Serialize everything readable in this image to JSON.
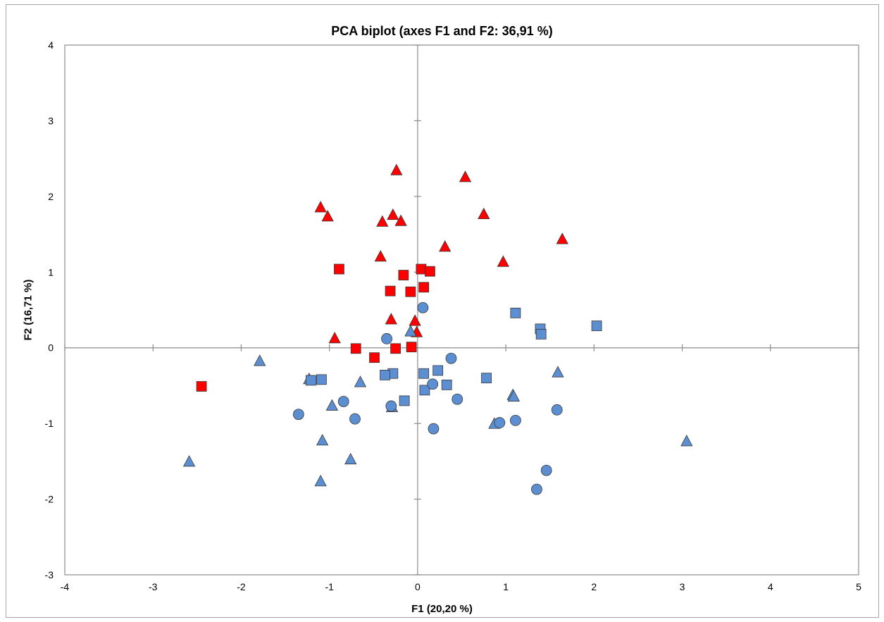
{
  "chart_data": {
    "type": "scatter",
    "title": "PCA biplot (axes F1 and F2: 36,91 %)",
    "xlabel": "F1 (20,20 %)",
    "ylabel": "F2 (16,71 %)",
    "xlim": [
      -4,
      5
    ],
    "ylim": [
      -3,
      4
    ],
    "xticks": [
      "-4",
      "-3",
      "-2",
      "-1",
      "0",
      "1",
      "2",
      "3",
      "4",
      "5"
    ],
    "yticks": [
      "-3",
      "-2",
      "-1",
      "0",
      "1",
      "2",
      "3",
      "4"
    ],
    "grid": false,
    "colors": {
      "red": "#ff0000",
      "blue": "#5b8fd1",
      "edge": "#3a3a3a",
      "axis": "#8c8c8c"
    },
    "series": [
      {
        "marker": "triangle",
        "color": "red",
        "points": [
          [
            -0.24,
            2.34
          ],
          [
            0.54,
            2.25
          ],
          [
            -1.1,
            1.85
          ],
          [
            -1.02,
            1.73
          ],
          [
            -0.28,
            1.75
          ],
          [
            -0.4,
            1.66
          ],
          [
            -0.19,
            1.67
          ],
          [
            0.75,
            1.76
          ],
          [
            1.64,
            1.43
          ],
          [
            0.31,
            1.33
          ],
          [
            -0.42,
            1.2
          ],
          [
            0.97,
            1.13
          ],
          [
            -0.3,
            0.37
          ],
          [
            -0.03,
            0.35
          ],
          [
            -0.01,
            0.2
          ],
          [
            -0.94,
            0.12
          ]
        ]
      },
      {
        "marker": "square",
        "color": "red",
        "points": [
          [
            -0.89,
            1.04
          ],
          [
            0.04,
            1.04
          ],
          [
            0.14,
            1.01
          ],
          [
            -0.16,
            0.96
          ],
          [
            -0.31,
            0.75
          ],
          [
            -0.08,
            0.74
          ],
          [
            0.07,
            0.8
          ],
          [
            -0.7,
            -0.01
          ],
          [
            -0.25,
            -0.01
          ],
          [
            -0.07,
            0.01
          ],
          [
            -0.49,
            -0.13
          ],
          [
            -2.45,
            -0.51
          ]
        ]
      },
      {
        "marker": "triangle",
        "color": "blue",
        "points": [
          [
            -0.08,
            0.21
          ],
          [
            -1.79,
            -0.18
          ],
          [
            -1.23,
            -0.42
          ],
          [
            -0.65,
            -0.46
          ],
          [
            1.59,
            -0.33
          ],
          [
            1.08,
            -0.63
          ],
          [
            1.09,
            -0.65
          ],
          [
            -0.97,
            -0.77
          ],
          [
            -0.29,
            -0.79
          ],
          [
            0.87,
            -1.01
          ],
          [
            -1.08,
            -1.23
          ],
          [
            -0.76,
            -1.48
          ],
          [
            -2.59,
            -1.51
          ],
          [
            -1.1,
            -1.77
          ],
          [
            3.05,
            -1.24
          ]
        ]
      },
      {
        "marker": "square",
        "color": "blue",
        "points": [
          [
            1.11,
            0.46
          ],
          [
            1.39,
            0.25
          ],
          [
            1.4,
            0.18
          ],
          [
            2.03,
            0.29
          ],
          [
            -0.28,
            -0.34
          ],
          [
            -0.37,
            -0.36
          ],
          [
            0.07,
            -0.34
          ],
          [
            0.23,
            -0.3
          ],
          [
            -1.21,
            -0.43
          ],
          [
            -1.09,
            -0.42
          ],
          [
            0.33,
            -0.49
          ],
          [
            0.78,
            -0.4
          ],
          [
            0.08,
            -0.56
          ],
          [
            -0.15,
            -0.7
          ]
        ]
      },
      {
        "marker": "circle",
        "color": "blue",
        "points": [
          [
            0.06,
            0.53
          ],
          [
            -0.35,
            0.12
          ],
          [
            0.38,
            -0.14
          ],
          [
            0.17,
            -0.48
          ],
          [
            -0.84,
            -0.71
          ],
          [
            0.45,
            -0.68
          ],
          [
            -0.3,
            -0.77
          ],
          [
            1.58,
            -0.82
          ],
          [
            -1.35,
            -0.88
          ],
          [
            -0.71,
            -0.94
          ],
          [
            0.93,
            -0.99
          ],
          [
            1.11,
            -0.96
          ],
          [
            0.18,
            -1.07
          ],
          [
            1.46,
            -1.62
          ],
          [
            1.35,
            -1.87
          ]
        ]
      }
    ]
  }
}
